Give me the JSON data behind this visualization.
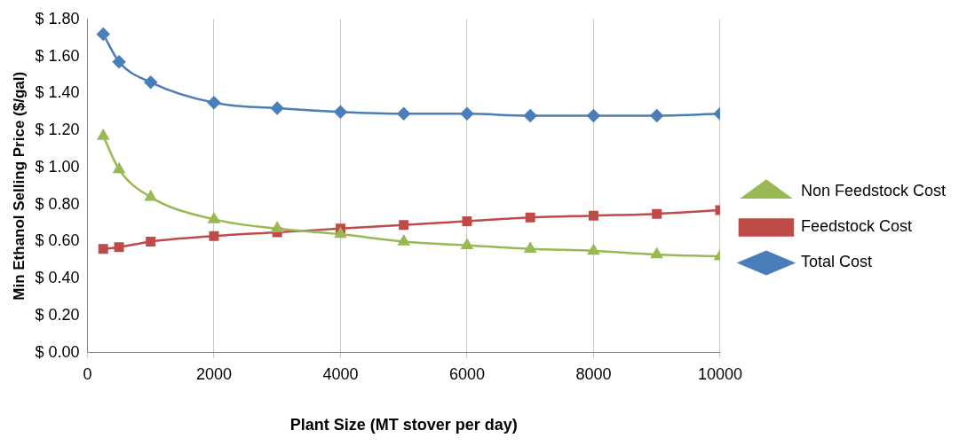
{
  "chart_data": {
    "type": "line",
    "xlabel": "Plant Size (MT stover per day)",
    "ylabel": "Min Ethanol Selling Price ($/gal)",
    "x": [
      250,
      500,
      1000,
      2000,
      3000,
      4000,
      5000,
      6000,
      7000,
      8000,
      9000,
      10000
    ],
    "series": [
      {
        "name": "Total Cost",
        "color": "#4a7ebb",
        "marker": "diamond",
        "values": [
          1.72,
          1.57,
          1.46,
          1.35,
          1.32,
          1.3,
          1.29,
          1.29,
          1.28,
          1.28,
          1.28,
          1.29
        ]
      },
      {
        "name": "Feedstock Cost",
        "color": "#be4b48",
        "marker": "square",
        "values": [
          0.56,
          0.57,
          0.6,
          0.63,
          0.65,
          0.67,
          0.69,
          0.71,
          0.73,
          0.74,
          0.75,
          0.77
        ]
      },
      {
        "name": "Non Feedstock Cost",
        "color": "#98b954",
        "marker": "triangle",
        "values": [
          1.17,
          0.99,
          0.84,
          0.72,
          0.67,
          0.64,
          0.6,
          0.58,
          0.56,
          0.55,
          0.53,
          0.52
        ]
      }
    ],
    "xlim": [
      0,
      10000
    ],
    "xticks": [
      0,
      2000,
      4000,
      6000,
      8000,
      10000
    ],
    "ylim": [
      0,
      1.8
    ],
    "yticks": [
      {
        "value": 0,
        "label": "$ 0.00"
      },
      {
        "value": 0.2,
        "label": "$ 0.20"
      },
      {
        "value": 0.4,
        "label": "$ 0.40"
      },
      {
        "value": 0.6,
        "label": "$ 0.60"
      },
      {
        "value": 0.8,
        "label": "$ 0.80"
      },
      {
        "value": 1.0,
        "label": "$ 1.00"
      },
      {
        "value": 1.2,
        "label": "$ 1.20"
      },
      {
        "value": 1.4,
        "label": "$ 1.40"
      },
      {
        "value": 1.6,
        "label": "$ 1.60"
      },
      {
        "value": 1.8,
        "label": "$ 1.80"
      }
    ],
    "grid": "x",
    "legend": "right",
    "line_style": "solid"
  }
}
